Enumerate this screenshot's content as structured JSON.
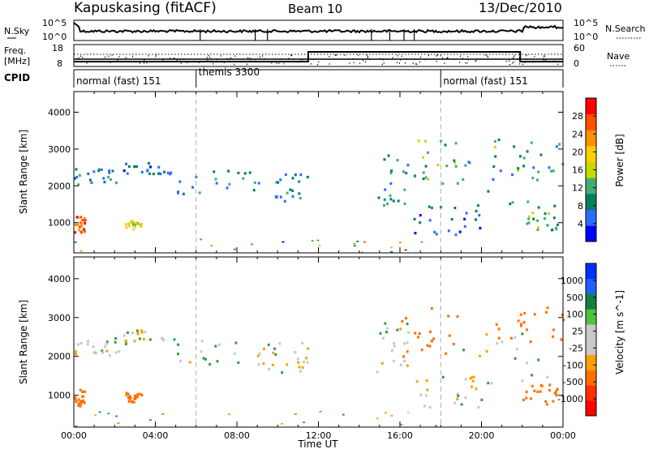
{
  "header": {
    "station": "Kapuskasing (fitACF)",
    "beam": "Beam 10",
    "date": "13/Dec/2010"
  },
  "top_panel": {
    "nsky_label": "N.Sky",
    "nsearch_label": "N.Search",
    "nsky_ticks": [
      "10^5",
      "10^0"
    ],
    "freq_label_1": "Freq.",
    "freq_label_2": "[MHz]",
    "freq_ticks": [
      "18",
      "8"
    ],
    "nave_label": "Nave",
    "nave_ticks": [
      "60",
      "0"
    ],
    "cpid_label": "CPID",
    "cpid_segments": [
      {
        "label": "normal (fast) 151",
        "start_hour": 0,
        "end_hour": 6
      },
      {
        "label": "themis 3300",
        "start_hour": 6,
        "end_hour": 18
      },
      {
        "label": "normal (fast) 151",
        "start_hour": 18,
        "end_hour": 24
      }
    ]
  },
  "chart_data": [
    {
      "type": "heatmap",
      "name": "power",
      "ylabel": "Slant Range [km]",
      "ylim": [
        180,
        4560
      ],
      "xlim": [
        0,
        24
      ],
      "yticks": [
        1000,
        2000,
        3000,
        4000
      ],
      "colorbar": {
        "label": "Power [dB]",
        "ticks": [
          "4",
          "8",
          "12",
          "16",
          "20",
          "24",
          "28"
        ],
        "range": [
          0,
          30
        ],
        "colors": [
          "#0000ff",
          "#2c6cff",
          "#008060",
          "#40b070",
          "#c8d800",
          "#ffd000",
          "#ff9000",
          "#ff5000",
          "#ff0000"
        ]
      },
      "echo_regions": [
        {
          "h": [
            0.0,
            2.2
          ],
          "r": [
            2000,
            2500
          ],
          "v": 8
        },
        {
          "h": [
            2.2,
            5.0
          ],
          "r": [
            2350,
            2700
          ],
          "v": 6
        },
        {
          "h": [
            5.0,
            9.5
          ],
          "r": [
            1800,
            2450
          ],
          "v": 9
        },
        {
          "h": [
            9.5,
            11.5
          ],
          "r": [
            1600,
            2400
          ],
          "v": 8
        },
        {
          "h": [
            0.0,
            0.5
          ],
          "r": [
            750,
            1200
          ],
          "v": 24
        },
        {
          "h": [
            2.5,
            3.3
          ],
          "r": [
            850,
            1100
          ],
          "v": 16
        },
        {
          "h": [
            14.8,
            16.4
          ],
          "r": [
            1500,
            3000
          ],
          "v": 8
        },
        {
          "h": [
            16.0,
            19.0
          ],
          "r": [
            2000,
            3300
          ],
          "v": 12
        },
        {
          "h": [
            16.5,
            20.0
          ],
          "r": [
            700,
            1500
          ],
          "v": 6
        },
        {
          "h": [
            19.0,
            23.8
          ],
          "r": [
            1200,
            2800
          ],
          "v": 8
        },
        {
          "h": [
            20.5,
            24.0
          ],
          "r": [
            2400,
            3300
          ],
          "v": 10
        },
        {
          "h": [
            22.0,
            23.7
          ],
          "r": [
            800,
            1300
          ],
          "v": 12
        },
        {
          "h": [
            0.0,
            18.0
          ],
          "r": [
            200,
            600
          ],
          "v": 10
        }
      ]
    },
    {
      "type": "heatmap",
      "name": "velocity",
      "xlabel": "Time UT",
      "ylabel": "Slant Range [km]",
      "ylim": [
        180,
        4560
      ],
      "xlim": [
        0,
        24
      ],
      "yticks": [
        1000,
        2000,
        3000,
        4000
      ],
      "xticks": [
        "00:00",
        "04:00",
        "08:00",
        "12:00",
        "16:00",
        "20:00",
        "00:00"
      ],
      "colorbar": {
        "label": "Velocity [m s^-1]",
        "ticks": [
          "1000",
          "500",
          "100",
          "25",
          "-25",
          "-100",
          "-500",
          "-1000"
        ],
        "range": [
          -1000,
          1000
        ],
        "colors": [
          "#0030ff",
          "#2060ff",
          "#108040",
          "#50c040",
          "#c8c8c8",
          "#c8c8c8",
          "#ffa000",
          "#ff7000",
          "#ff3000",
          "#ff0000"
        ]
      },
      "echo_regions": [
        {
          "h": [
            0.0,
            2.2
          ],
          "r": [
            2000,
            2500
          ],
          "v": 0
        },
        {
          "h": [
            2.2,
            5.0
          ],
          "r": [
            2350,
            2700
          ],
          "v": 5
        },
        {
          "h": [
            5.0,
            9.5
          ],
          "r": [
            1800,
            2450
          ],
          "v": 0
        },
        {
          "h": [
            9.5,
            11.5
          ],
          "r": [
            1600,
            2400
          ],
          "v": -5
        },
        {
          "h": [
            0.0,
            0.5
          ],
          "r": [
            750,
            1200
          ],
          "v": -200
        },
        {
          "h": [
            2.5,
            3.3
          ],
          "r": [
            850,
            1100
          ],
          "v": -150
        },
        {
          "h": [
            14.8,
            16.4
          ],
          "r": [
            1500,
            3000
          ],
          "v": -10
        },
        {
          "h": [
            16.0,
            19.0
          ],
          "r": [
            2000,
            3300
          ],
          "v": -250
        },
        {
          "h": [
            16.5,
            20.0
          ],
          "r": [
            700,
            1500
          ],
          "v": 0
        },
        {
          "h": [
            19.0,
            23.8
          ],
          "r": [
            1200,
            2800
          ],
          "v": 0
        },
        {
          "h": [
            20.5,
            24.0
          ],
          "r": [
            2400,
            3300
          ],
          "v": -300
        },
        {
          "h": [
            22.0,
            23.7
          ],
          "r": [
            800,
            1300
          ],
          "v": -250
        },
        {
          "h": [
            0.0,
            18.0
          ],
          "r": [
            200,
            600
          ],
          "v": -60
        }
      ]
    }
  ]
}
